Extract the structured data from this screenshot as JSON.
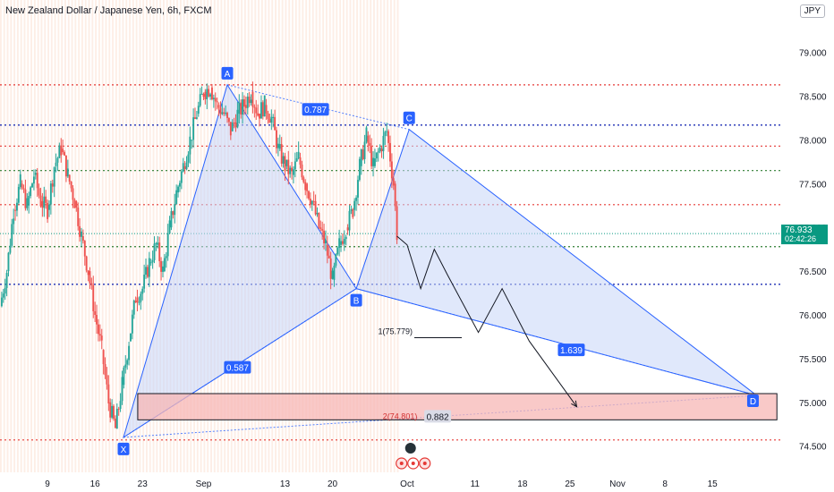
{
  "header": {
    "title": "New Zealand Dollar / Japanese Yen, 6h, FXCM",
    "currency": "JPY"
  },
  "price_tag": {
    "price": "76.933",
    "countdown": "02:42:26"
  },
  "colors": {
    "up": "#26a69a",
    "down": "#ef5350",
    "pattern_fill": "#c6d6f7",
    "pattern_line": "#2962ff",
    "zone_fill": "#f7b7b5",
    "red_line": "#e53935",
    "blue_line": "#1e2fb5",
    "green_line": "#2e7d32",
    "price_line": "#089981"
  },
  "chart_data": {
    "type": "candlestick",
    "ylim": [
      74.2,
      79.6
    ],
    "y_ticks": [
      "74.500",
      "75.000",
      "75.500",
      "76.000",
      "76.500",
      "77.000",
      "77.500",
      "78.000",
      "78.500",
      "79.000"
    ],
    "y_tick_values": [
      74.5,
      75.0,
      75.5,
      76.0,
      76.5,
      77.0,
      77.5,
      78.0,
      78.5,
      79.0
    ],
    "x_tick_labels": [
      {
        "label": "9",
        "day": 9
      },
      {
        "label": "16",
        "day": 16
      },
      {
        "label": "23",
        "day": 23
      },
      {
        "label": "Sep",
        "day": 32
      },
      {
        "label": "13",
        "day": 44
      },
      {
        "label": "20",
        "day": 51
      },
      {
        "label": "Oct",
        "day": 62
      },
      {
        "label": "11",
        "day": 72
      },
      {
        "label": "18",
        "day": 79
      },
      {
        "label": "25",
        "day": 86
      },
      {
        "label": "Nov",
        "day": 93
      },
      {
        "label": "8",
        "day": 100
      },
      {
        "label": "15",
        "day": 107
      }
    ],
    "xlim_days": [
      2,
      117
    ],
    "last_candle_day": 60.5,
    "path": [
      [
        2,
        76.1
      ],
      [
        3,
        76.5
      ],
      [
        4,
        77.2
      ],
      [
        5,
        77.5
      ],
      [
        6,
        77.25
      ],
      [
        7,
        77.6
      ],
      [
        8,
        77.3
      ],
      [
        9,
        77.2
      ],
      [
        10,
        77.7
      ],
      [
        11,
        77.9
      ],
      [
        12,
        77.6
      ],
      [
        13,
        77.3
      ],
      [
        14,
        76.9
      ],
      [
        15,
        76.5
      ],
      [
        16,
        76.0
      ],
      [
        17,
        75.6
      ],
      [
        18,
        75.0
      ],
      [
        19,
        74.7
      ],
      [
        20,
        75.2
      ],
      [
        21,
        75.7
      ],
      [
        22,
        76.2
      ],
      [
        23,
        76.3
      ],
      [
        24,
        76.6
      ],
      [
        25,
        76.8
      ],
      [
        26,
        76.5
      ],
      [
        27,
        77.0
      ],
      [
        28,
        77.4
      ],
      [
        29,
        77.7
      ],
      [
        30,
        78.0
      ],
      [
        31,
        78.3
      ],
      [
        32,
        78.55
      ],
      [
        33,
        78.6
      ],
      [
        34,
        78.4
      ],
      [
        35,
        78.3
      ],
      [
        36,
        78.1
      ],
      [
        37,
        78.3
      ],
      [
        38,
        78.4
      ],
      [
        39,
        78.55
      ],
      [
        40,
        78.3
      ],
      [
        41,
        78.4
      ],
      [
        42,
        78.25
      ],
      [
        43,
        77.9
      ],
      [
        44,
        77.7
      ],
      [
        45,
        77.6
      ],
      [
        46,
        77.8
      ],
      [
        47,
        77.5
      ],
      [
        48,
        77.3
      ],
      [
        49,
        77.0
      ],
      [
        50,
        76.8
      ],
      [
        51,
        76.4
      ],
      [
        52,
        76.8
      ],
      [
        53,
        77.0
      ],
      [
        54,
        77.2
      ],
      [
        55,
        77.7
      ],
      [
        56,
        78.05
      ],
      [
        57,
        77.7
      ],
      [
        58,
        77.9
      ],
      [
        59,
        78.1
      ],
      [
        60,
        77.5
      ],
      [
        60.5,
        76.93
      ]
    ],
    "points": [
      {
        "label": "X",
        "day": 20.2,
        "price": 74.6
      },
      {
        "label": "A",
        "day": 35.5,
        "price": 78.63
      },
      {
        "label": "B",
        "day": 54.5,
        "price": 76.3
      },
      {
        "label": "C",
        "day": 62.3,
        "price": 78.12
      },
      {
        "label": "D",
        "day": 113.5,
        "price": 75.08
      }
    ],
    "ratios": [
      {
        "label": "0.587",
        "day": 37,
        "price": 75.4
      },
      {
        "label": "0.787",
        "day": 48.5,
        "price": 78.35
      },
      {
        "label": "1.639",
        "day": 86.2,
        "price": 75.6
      }
    ],
    "horizontal_levels": [
      {
        "price": 78.63,
        "style": "red"
      },
      {
        "price": 78.17,
        "style": "blue"
      },
      {
        "price": 77.93,
        "style": "red"
      },
      {
        "price": 77.65,
        "style": "green"
      },
      {
        "price": 77.26,
        "style": "red"
      },
      {
        "price": 76.78,
        "style": "green"
      },
      {
        "price": 76.35,
        "style": "blue"
      },
      {
        "price": 74.57,
        "style": "red"
      }
    ],
    "price_line": 76.93,
    "zone": {
      "day_start": 22.3,
      "day_end": 116.5,
      "price_top": 75.1,
      "price_bottom": 74.8
    },
    "target_labels": [
      {
        "label": "1(75.779)",
        "day": 62.8,
        "price": 75.76
      },
      {
        "label": "2(74.801)",
        "day": 63.5,
        "price": 74.84
      },
      {
        "label": "0.882",
        "day": 66.5,
        "price": 74.84
      }
    ],
    "projection": [
      [
        60.5,
        76.9
      ],
      [
        62,
        76.8
      ],
      [
        64,
        76.3
      ],
      [
        66,
        76.75
      ],
      [
        68,
        76.45
      ],
      [
        72.5,
        75.8
      ],
      [
        76,
        76.3
      ],
      [
        80,
        75.7
      ],
      [
        87,
        74.95
      ]
    ]
  }
}
